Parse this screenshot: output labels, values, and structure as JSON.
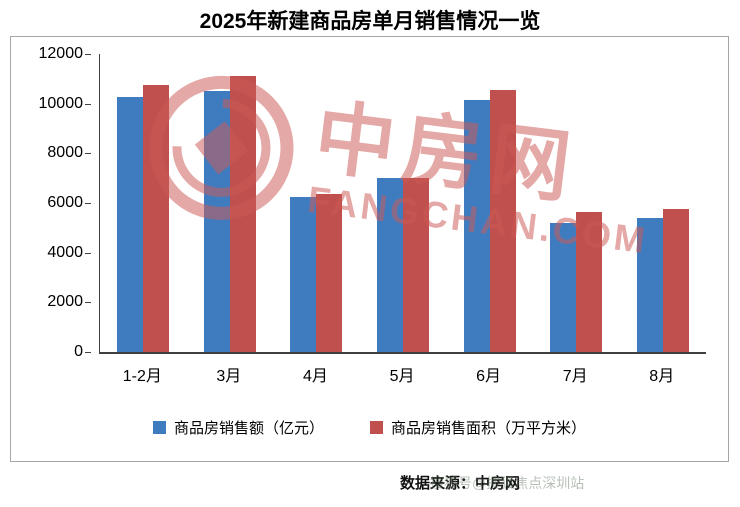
{
  "title": "2025年新建商品房单月销售情况一览",
  "watermark": {
    "cn": "中房网",
    "en": "FANGCHAN.COM"
  },
  "source": {
    "label": "数据来源：中房网",
    "overlay_text": "搜狐号@搜狐焦点深圳站"
  },
  "chart_data": {
    "type": "bar",
    "title": "2025年新建商品房单月销售情况一览",
    "categories": [
      "1-2月",
      "3月",
      "4月",
      "5月",
      "6月",
      "7月",
      "8月"
    ],
    "series": [
      {
        "name": "商品房销售额（亿元）",
        "color": "#3f7cbf",
        "values": [
          10250,
          10500,
          6250,
          7000,
          10150,
          5200,
          5400
        ]
      },
      {
        "name": "商品房销售面积（万平方米）",
        "color": "#c0504d",
        "values": [
          10750,
          11100,
          6350,
          7000,
          10550,
          5650,
          5750
        ]
      }
    ],
    "xlabel": "",
    "ylabel": "",
    "ylim": [
      0,
      12000
    ],
    "ytick_step": 2000,
    "grid": false,
    "legend_position": "bottom"
  }
}
